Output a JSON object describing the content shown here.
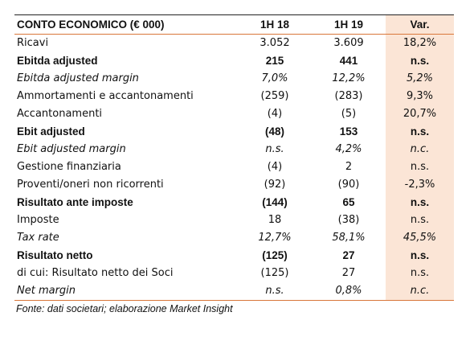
{
  "table": {
    "header": [
      "CONTO ECONOMICO (€ 000)",
      "1H 18",
      "1H 19",
      "Var."
    ],
    "rows": [
      {
        "cells": [
          "Ricavi",
          "3.052",
          "3.609",
          "18,2%"
        ],
        "style": "normal"
      },
      {
        "cells": [
          "Ebitda adjusted",
          "215",
          "441",
          "n.s."
        ],
        "style": "bold"
      },
      {
        "cells": [
          "Ebitda adjusted margin",
          "7,0%",
          "12,2%",
          "5,2%"
        ],
        "style": "italic"
      },
      {
        "cells": [
          "Ammortamenti e accantonamenti",
          "(259)",
          "(283)",
          "9,3%"
        ],
        "style": "normal"
      },
      {
        "cells": [
          "Accantonamenti",
          "(4)",
          "(5)",
          "20,7%"
        ],
        "style": "normal"
      },
      {
        "cells": [
          "Ebit adjusted",
          "(48)",
          "153",
          "n.s."
        ],
        "style": "bold"
      },
      {
        "cells": [
          "Ebit adjusted margin",
          "n.s.",
          "4,2%",
          "n.c."
        ],
        "style": "italic"
      },
      {
        "cells": [
          "Gestione finanziaria",
          "(4)",
          "2",
          "n.s."
        ],
        "style": "normal"
      },
      {
        "cells": [
          "Proventi/oneri non ricorrenti",
          "(92)",
          "(90)",
          "-2,3%"
        ],
        "style": "normal"
      },
      {
        "cells": [
          "Risultato ante imposte",
          "(144)",
          "65",
          "n.s."
        ],
        "style": "bold"
      },
      {
        "cells": [
          "Imposte",
          "18",
          "(38)",
          "n.s."
        ],
        "style": "normal"
      },
      {
        "cells": [
          "Tax rate",
          "12,7%",
          "58,1%",
          "45,5%"
        ],
        "style": "italic"
      },
      {
        "cells": [
          "Risultato netto",
          "(125)",
          "27",
          "n.s."
        ],
        "style": "bold"
      },
      {
        "cells": [
          "di cui: Risultato netto dei Soci",
          "(125)",
          "27",
          "n.s."
        ],
        "style": "normal"
      },
      {
        "cells": [
          "Net margin",
          "n.s.",
          "0,8%",
          "n.c."
        ],
        "style": "italic"
      }
    ]
  },
  "source": "Fonte: dati societari; elaborazione Market Insight"
}
